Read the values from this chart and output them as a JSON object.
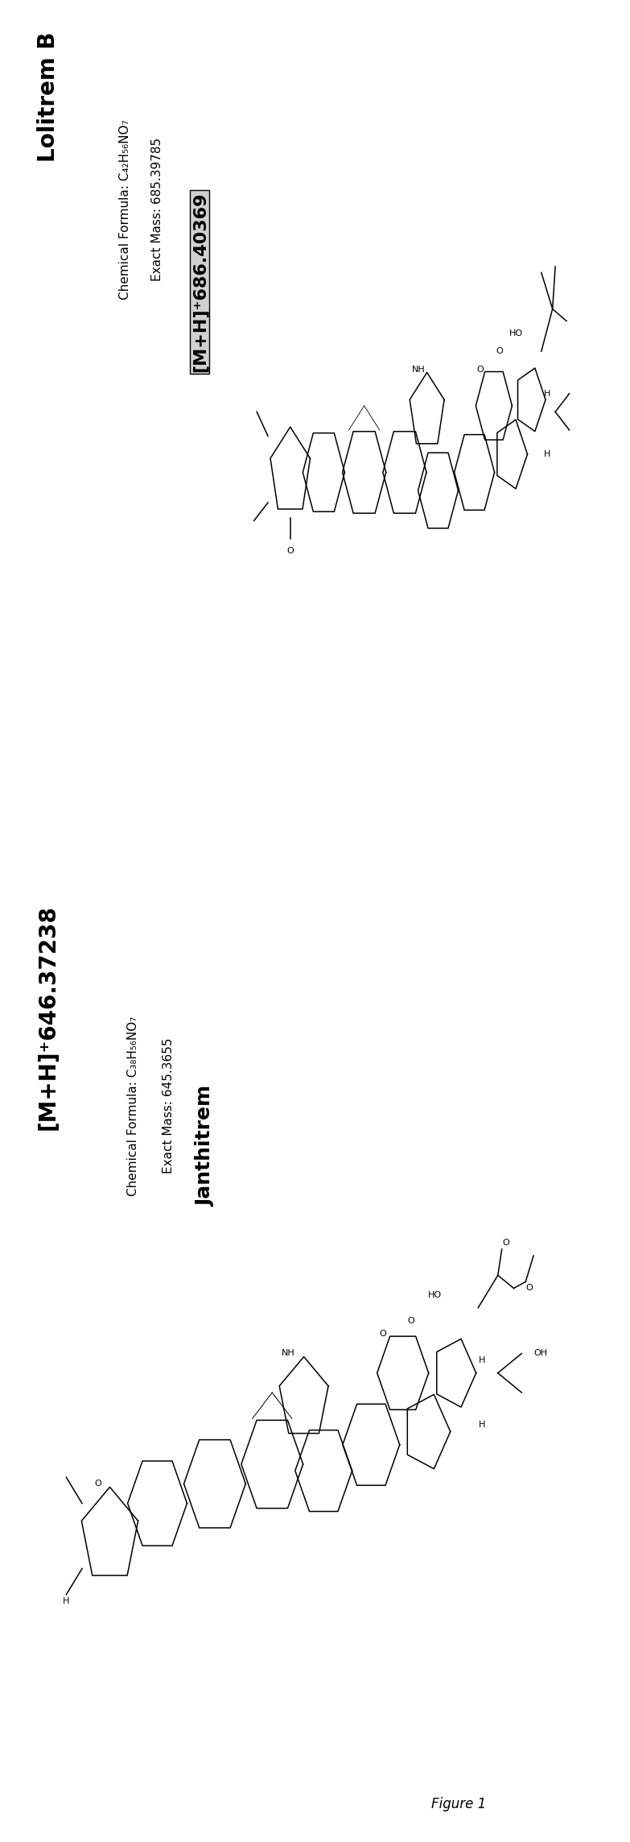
{
  "figsize": [
    7.83,
    22.87
  ],
  "dpi": 100,
  "background_color": "#ffffff",
  "text_color": "#000000",
  "figure_label": "Figure 1",
  "lolitrem": {
    "title": "Lolitrem B",
    "formula": "Chemical Formula: C₄₂H₅₆NO₇",
    "exact_mass": "Exact Mass: 685.39785",
    "adduct": "[M+H]⁺686.40369",
    "title_fontsize": 20,
    "formula_fontsize": 11,
    "adduct_fontsize": 16
  },
  "janthitrem": {
    "adduct": "[M+H]⁺646.37238",
    "formula": "Chemical Formula: C₃₈H₅₆NO₇",
    "exact_mass": "Exact Mass: 645.3655",
    "name": "Janthitrem",
    "adduct_fontsize": 20,
    "formula_fontsize": 11,
    "name_fontsize": 18
  }
}
